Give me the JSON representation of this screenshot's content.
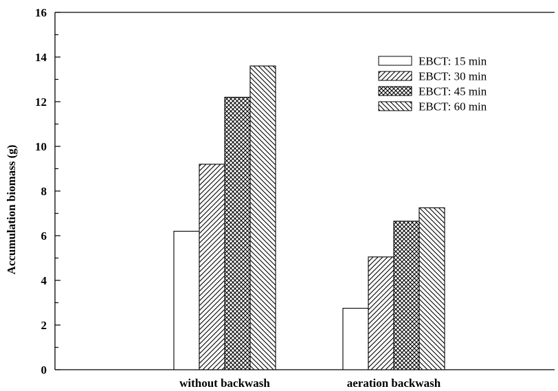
{
  "chart_data": {
    "type": "bar",
    "ylabel": "Accumulation biomass (g)",
    "xlabel": "",
    "ylim": [
      0,
      16
    ],
    "y_major_ticks": [
      0,
      2,
      4,
      6,
      8,
      10,
      12,
      14,
      16
    ],
    "y_minor_step": 1,
    "grid": false,
    "legend_position": "top-right",
    "categories": [
      "without backwash",
      "aeration backwash"
    ],
    "series": [
      {
        "name": "EBCT: 15 min",
        "pattern": "none",
        "values": [
          6.2,
          2.75
        ]
      },
      {
        "name": "EBCT: 30 min",
        "pattern": "diagonal-forward",
        "values": [
          9.2,
          5.05
        ]
      },
      {
        "name": "EBCT: 45 min",
        "pattern": "crosshatch",
        "values": [
          12.2,
          6.65
        ]
      },
      {
        "name": "EBCT: 60 min",
        "pattern": "diagonal-backward",
        "values": [
          13.6,
          7.25
        ]
      }
    ]
  }
}
